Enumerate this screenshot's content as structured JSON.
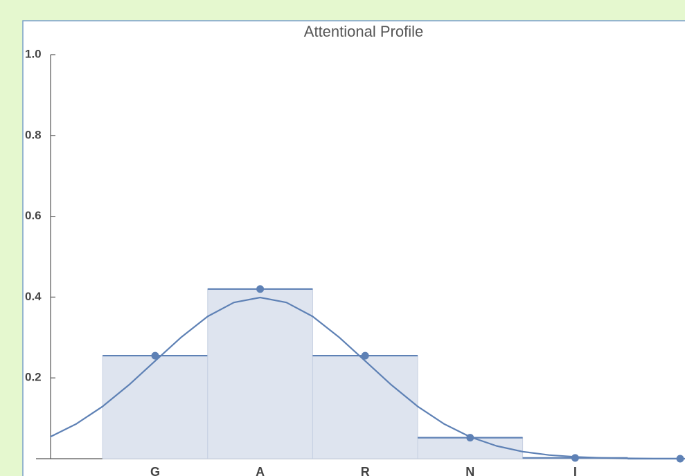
{
  "chart_data": {
    "type": "bar",
    "title": "Attentional Profile",
    "categories": [
      "G",
      "A",
      "R",
      "N",
      "I",
      null
    ],
    "values": [
      0.255,
      0.42,
      0.255,
      0.052,
      0.002,
      0.0
    ],
    "color": "#5e81b5",
    "fill": "#dee4ef",
    "ylim": [
      0,
      1
    ],
    "yticks": [
      0.2,
      0.4,
      0.6,
      0.8,
      {
        "value": 1,
        "label": "1.0"
      }
    ],
    "curve": {
      "x": [
        -1,
        -0.75,
        -0.5,
        -0.25,
        0,
        0.25,
        0.5,
        0.75,
        1,
        1.25,
        1.5,
        1.75,
        2,
        2.25,
        2.5,
        2.75,
        3,
        3.25,
        3.5,
        3.75,
        4,
        4.25,
        4.5,
        4.75,
        5
      ],
      "values": [
        0.054,
        0.0863,
        0.1295,
        0.1826,
        0.242,
        0.3011,
        0.3521,
        0.3867,
        0.3989,
        0.3867,
        0.3521,
        0.3011,
        0.242,
        0.1826,
        0.1295,
        0.0863,
        0.054,
        0.0317,
        0.0175,
        0.0091,
        0.0044,
        0.002,
        0.0009,
        0.0004,
        0.0001
      ]
    }
  }
}
